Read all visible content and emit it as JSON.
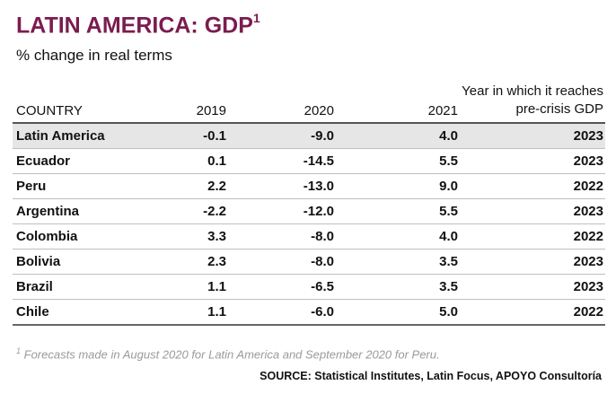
{
  "title": "LATIN AMERICA: GDP",
  "title_sup": "1",
  "subtitle": "% change in real terms",
  "colors": {
    "title": "#7b1c4f",
    "highlight_row": "#e6e6e6",
    "footnote": "#9a9a9a"
  },
  "chart_data": {
    "type": "table",
    "title": "LATIN AMERICA: GDP",
    "subtitle": "% change in real terms",
    "columns": [
      "COUNTRY",
      "2019",
      "2020",
      "2021",
      "Year in which it reaches pre-crisis GDP"
    ],
    "rows": [
      [
        "Latin America",
        "-0.1",
        "-9.0",
        "4.0",
        "2023"
      ],
      [
        "Ecuador",
        "0.1",
        "-14.5",
        "5.5",
        "2023"
      ],
      [
        "Peru",
        "2.2",
        "-13.0",
        "9.0",
        "2022"
      ],
      [
        "Argentina",
        "-2.2",
        "-12.0",
        "5.5",
        "2023"
      ],
      [
        "Colombia",
        "3.3",
        "-8.0",
        "4.0",
        "2022"
      ],
      [
        "Bolivia",
        "2.3",
        "-8.0",
        "3.5",
        "2023"
      ],
      [
        "Brazil",
        "1.1",
        "-6.5",
        "3.5",
        "2023"
      ],
      [
        "Chile",
        "1.1",
        "-6.0",
        "5.0",
        "2022"
      ]
    ],
    "highlighted_row": "Latin America"
  },
  "footnote_sup": "1",
  "footnote": "Forecasts made in August 2020 for Latin America and September 2020 for Peru.",
  "source": "SOURCE: Statistical Institutes, Latin Focus, APOYO Consultoría"
}
